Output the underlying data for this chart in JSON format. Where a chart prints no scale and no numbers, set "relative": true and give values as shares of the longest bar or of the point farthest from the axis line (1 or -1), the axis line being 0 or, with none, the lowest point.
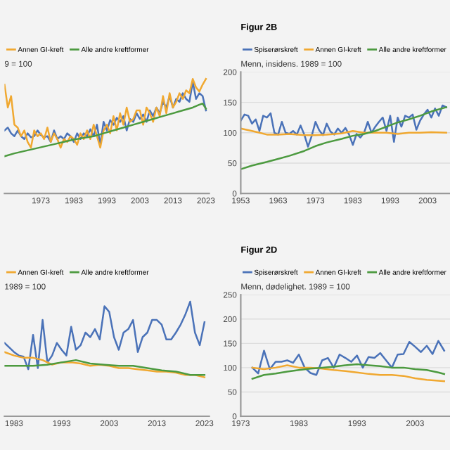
{
  "chart_data": [
    {
      "type": "line",
      "subtitle": "9 = 100",
      "relative": true,
      "x": [
        1962,
        1963,
        1964,
        1965,
        1966,
        1967,
        1968,
        1969,
        1970,
        1971,
        1972,
        1973,
        1974,
        1975,
        1976,
        1977,
        1978,
        1979,
        1980,
        1981,
        1982,
        1983,
        1984,
        1985,
        1986,
        1987,
        1988,
        1989,
        1990,
        1991,
        1992,
        1993,
        1994,
        1995,
        1996,
        1997,
        1998,
        1999,
        2000,
        2001,
        2002,
        2003,
        2004,
        2005,
        2006,
        2007,
        2008,
        2009,
        2010,
        2011,
        2012,
        2013,
        2014,
        2015,
        2016,
        2017,
        2018,
        2019,
        2020,
        2021,
        2022,
        2023
      ],
      "xlim": [
        1962,
        2024
      ],
      "xticks": [
        1973,
        1983,
        1993,
        2003,
        2013,
        2023
      ],
      "legend": "top left",
      "grid": false,
      "series": [
        {
          "color": "#4a72b8",
          "values": [
            0.55,
            0.575,
            0.525,
            0.5,
            0.55,
            0.5,
            0.475,
            0.525,
            0.49,
            0.5,
            0.55,
            0.51,
            0.49,
            0.5,
            0.45,
            0.55,
            0.475,
            0.5,
            0.475,
            0.525,
            0.5,
            0.45,
            0.525,
            0.475,
            0.525,
            0.5,
            0.56,
            0.5,
            0.6,
            0.425,
            0.625,
            0.55,
            0.64,
            0.6,
            0.66,
            0.625,
            0.675,
            0.55,
            0.65,
            0.625,
            0.7,
            0.65,
            0.69,
            0.625,
            0.725,
            0.675,
            0.75,
            0.7,
            0.8,
            0.75,
            0.85,
            0.75,
            0.825,
            0.8,
            0.875,
            0.825,
            0.8,
            0.975,
            0.825,
            0.875,
            0.85,
            0.725
          ]
        },
        {
          "name": "Annen GI-kreft",
          "color": "#f0a830",
          "values": [
            0.95,
            0.75,
            0.85,
            0.6,
            0.575,
            0.5,
            0.55,
            0.45,
            0.4,
            0.55,
            0.5,
            0.525,
            0.475,
            0.575,
            0.45,
            0.525,
            0.475,
            0.4,
            0.475,
            0.45,
            0.5,
            0.475,
            0.425,
            0.525,
            0.475,
            0.55,
            0.475,
            0.6,
            0.5,
            0.4,
            0.55,
            0.6,
            0.525,
            0.675,
            0.55,
            0.7,
            0.6,
            0.75,
            0.625,
            0.65,
            0.725,
            0.725,
            0.6,
            0.75,
            0.7,
            0.625,
            0.75,
            0.675,
            0.85,
            0.7,
            0.875,
            0.75,
            0.8,
            0.875,
            0.825,
            0.9,
            0.875,
            1,
            0.925,
            0.89,
            0.95,
            1
          ]
        },
        {
          "name": "Alle andre kreftformer",
          "color": "#4c9a3f",
          "x": [
            1962,
            1965,
            1968,
            1971,
            1974,
            1977,
            1980,
            1983,
            1986,
            1989,
            1992,
            1995,
            1998,
            2001,
            2004,
            2007,
            2010,
            2013,
            2016,
            2019,
            2021,
            2022,
            2023
          ],
          "values": [
            0.325,
            0.35,
            0.37,
            0.39,
            0.41,
            0.43,
            0.45,
            0.47,
            0.485,
            0.5,
            0.525,
            0.55,
            0.575,
            0.6,
            0.625,
            0.65,
            0.675,
            0.7,
            0.725,
            0.75,
            0.775,
            0.785,
            0.74
          ]
        }
      ]
    },
    {
      "type": "line",
      "title": "Figur 2B",
      "subtitle": "Menn, insidens. 1989 = 100",
      "x": [
        1953,
        1954,
        1955,
        1956,
        1957,
        1958,
        1959,
        1960,
        1961,
        1962,
        1963,
        1964,
        1965,
        1966,
        1967,
        1968,
        1969,
        1970,
        1971,
        1972,
        1973,
        1974,
        1975,
        1976,
        1977,
        1978,
        1979,
        1980,
        1981,
        1982,
        1983,
        1984,
        1985,
        1986,
        1987,
        1988,
        1989,
        1990,
        1991,
        1992,
        1993,
        1994,
        1995,
        1996,
        1997,
        1998,
        1999,
        2000,
        2001,
        2002,
        2003,
        2004,
        2005,
        2006,
        2007,
        2008
      ],
      "xlim": [
        1953,
        2009
      ],
      "xticks": [
        1953,
        1963,
        1973,
        1983,
        1993,
        2003
      ],
      "ylim": [
        0,
        200
      ],
      "yticks": [
        0,
        50,
        100,
        150,
        200
      ],
      "legend": "top left",
      "grid": "y",
      "series": [
        {
          "name": "Spiserørskreft",
          "color": "#4a72b8",
          "values": [
            120,
            130,
            128,
            115,
            122,
            103,
            128,
            125,
            132,
            100,
            97,
            118,
            100,
            98,
            103,
            97,
            112,
            97,
            77,
            95,
            118,
            104,
            96,
            115,
            102,
            97,
            107,
            100,
            108,
            97,
            80,
            98,
            92,
            100,
            118,
            100,
            110,
            118,
            125,
            103,
            128,
            85,
            125,
            110,
            128,
            125,
            130,
            105,
            120,
            130,
            138,
            125,
            140,
            128,
            145,
            142
          ]
        },
        {
          "name": "Annen GI-kreft",
          "color": "#f0a830",
          "x": [
            1953,
            1956,
            1958,
            1960,
            1963,
            1966,
            1970,
            1973,
            1976,
            1980,
            1983,
            1986,
            1989,
            1992,
            1995,
            1998,
            2001,
            2004,
            2008
          ],
          "values": [
            107,
            103,
            100,
            97,
            97,
            98,
            96,
            96,
            97,
            99,
            103,
            100,
            100,
            100,
            98,
            100,
            100,
            101,
            100
          ]
        },
        {
          "name": "Alle andre kreftformer",
          "color": "#4c9a3f",
          "x": [
            1953,
            1956,
            1960,
            1963,
            1966,
            1970,
            1973,
            1976,
            1980,
            1983,
            1986,
            1989,
            1992,
            1995,
            1998,
            2001,
            2004,
            2008
          ],
          "values": [
            40,
            46,
            52,
            57,
            62,
            70,
            78,
            84,
            90,
            95,
            98,
            103,
            110,
            117,
            122,
            128,
            135,
            142
          ]
        }
      ]
    },
    {
      "type": "line",
      "subtitle": "1989 = 100",
      "relative": true,
      "x": [
        1981,
        1982,
        1983,
        1984,
        1985,
        1986,
        1987,
        1988,
        1989,
        1990,
        1991,
        1992,
        1993,
        1994,
        1995,
        1996,
        1997,
        1998,
        1999,
        2000,
        2001,
        2002,
        2003,
        2004,
        2005,
        2006,
        2007,
        2008,
        2009,
        2010,
        2011,
        2012,
        2013,
        2014,
        2015,
        2016,
        2017,
        2018,
        2019,
        2020,
        2021,
        2022,
        2023
      ],
      "xlim": [
        1981,
        2024
      ],
      "xticks": [
        1983,
        1993,
        2003,
        2013,
        2023
      ],
      "legend": "top left",
      "grid": false,
      "series": [
        {
          "color": "#4a72b8",
          "values": [
            0.64,
            0.6,
            0.56,
            0.53,
            0.52,
            0.41,
            0.71,
            0.42,
            0.84,
            0.47,
            0.53,
            0.64,
            0.58,
            0.53,
            0.78,
            0.58,
            0.62,
            0.73,
            0.69,
            0.76,
            0.67,
            0.96,
            0.91,
            0.69,
            0.58,
            0.73,
            0.76,
            0.84,
            0.56,
            0.69,
            0.73,
            0.84,
            0.84,
            0.8,
            0.67,
            0.67,
            0.73,
            0.8,
            0.89,
            1,
            0.73,
            0.62,
            0.82
          ]
        },
        {
          "name": "Annen GI-kreft",
          "color": "#f0a830",
          "x": [
            1981,
            1983,
            1985,
            1987,
            1989,
            1991,
            1993,
            1995,
            1997,
            1999,
            2001,
            2003,
            2005,
            2007,
            2009,
            2011,
            2013,
            2015,
            2017,
            2019,
            2021,
            2023
          ],
          "values": [
            0.56,
            0.53,
            0.51,
            0.51,
            0.49,
            0.45,
            0.47,
            0.47,
            0.46,
            0.44,
            0.45,
            0.44,
            0.42,
            0.42,
            0.41,
            0.4,
            0.39,
            0.39,
            0.38,
            0.36,
            0.36,
            0.34
          ]
        },
        {
          "name": "Alle andre kreftformer",
          "color": "#4c9a3f",
          "x": [
            1981,
            1984,
            1987,
            1990,
            1993,
            1996,
            1999,
            2002,
            2005,
            2008,
            2011,
            2014,
            2017,
            2020,
            2023
          ],
          "values": [
            0.44,
            0.44,
            0.44,
            0.45,
            0.47,
            0.49,
            0.46,
            0.45,
            0.44,
            0.44,
            0.42,
            0.4,
            0.39,
            0.36,
            0.36
          ]
        }
      ]
    },
    {
      "type": "line",
      "title": "Figur 2D",
      "subtitle": "Menn, dødelighet. 1989 = 100",
      "x": [
        1975,
        1976,
        1977,
        1978,
        1979,
        1980,
        1981,
        1982,
        1983,
        1984,
        1985,
        1986,
        1987,
        1988,
        1989,
        1990,
        1991,
        1992,
        1993,
        1994,
        1995,
        1996,
        1997,
        1998,
        1999,
        2000,
        2001,
        2002,
        2003,
        2004,
        2005,
        2006,
        2007,
        2008
      ],
      "xlim": [
        1973,
        2009
      ],
      "xticks": [
        1973,
        1983,
        1993,
        2003
      ],
      "ylim": [
        0,
        250
      ],
      "yticks": [
        0,
        50,
        100,
        150,
        200,
        250
      ],
      "legend": "top left",
      "grid": "y",
      "series": [
        {
          "name": "Spiserørskreft",
          "color": "#4a72b8",
          "values": [
            100,
            88,
            135,
            97,
            112,
            112,
            115,
            110,
            127,
            100,
            89,
            85,
            115,
            120,
            100,
            127,
            120,
            112,
            125,
            100,
            122,
            120,
            130,
            115,
            100,
            127,
            128,
            153,
            143,
            132,
            145,
            128,
            155,
            135
          ]
        },
        {
          "name": "Annen GI-kreft",
          "color": "#f0a830",
          "x": [
            1975,
            1977,
            1979,
            1981,
            1983,
            1985,
            1987,
            1989,
            1991,
            1993,
            1995,
            1997,
            1999,
            2001,
            2003,
            2005,
            2007,
            2008
          ],
          "values": [
            100,
            97,
            100,
            105,
            100,
            100,
            98,
            95,
            93,
            90,
            87,
            85,
            85,
            83,
            78,
            75,
            73,
            72
          ]
        },
        {
          "name": "Alle andre kreftformer",
          "color": "#4c9a3f",
          "x": [
            1975,
            1977,
            1979,
            1981,
            1983,
            1985,
            1987,
            1989,
            1991,
            1993,
            1995,
            1997,
            1999,
            2001,
            2003,
            2005,
            2007,
            2008
          ],
          "values": [
            77,
            85,
            88,
            92,
            95,
            98,
            100,
            102,
            105,
            107,
            105,
            103,
            100,
            100,
            97,
            95,
            90,
            87
          ]
        }
      ]
    }
  ]
}
